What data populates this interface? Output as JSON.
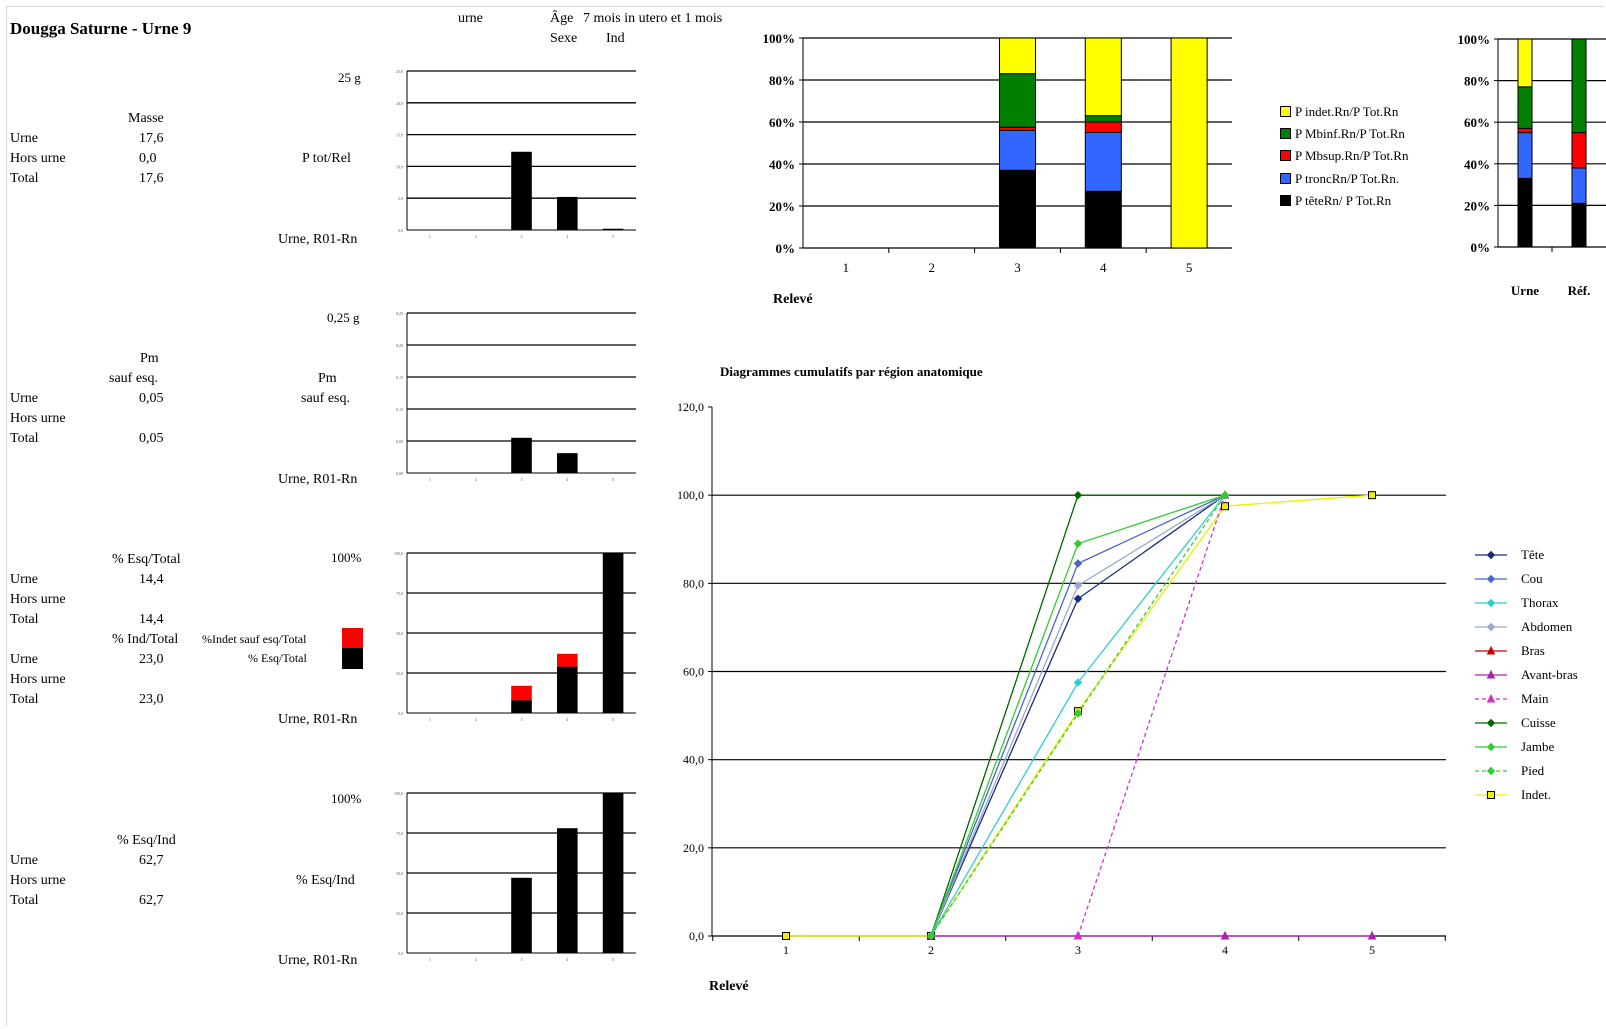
{
  "header": {
    "title": "Dougga Saturne - Urne 9",
    "urne_label": "urne",
    "age_label": "Âge",
    "age_value": "7 mois in utero et 1 mois",
    "sexe_label": "Sexe",
    "sexe_value": "Ind"
  },
  "row_labels": {
    "urne": "Urne",
    "hors_urne": "Hors urne",
    "total": "Total"
  },
  "blocks": {
    "masse": {
      "header": "Masse",
      "urne": "17,6",
      "hors_urne": "0,0",
      "total": "17,6"
    },
    "pm": {
      "header1": "Pm",
      "header2": "sauf esq.",
      "urne": "0,05",
      "hors_urne": "",
      "total": "0,05"
    },
    "esq_total": {
      "header": "% Esq/Total",
      "urne": "14,4",
      "hors_urne": "",
      "total": "14,4"
    },
    "ind_total": {
      "header": "% Ind/Total",
      "urne": "23,0",
      "hors_urne": "",
      "total": "23,0"
    },
    "esq_ind": {
      "header": "% Esq/Ind",
      "urne": "62,7",
      "hors_urne": "",
      "total": "62,7"
    }
  },
  "small_charts_labels": {
    "c1_max": "25 g",
    "c1_side": "P tot/Rel",
    "c1_bottom": "Urne, R01-Rn",
    "c2_max": "0,25 g",
    "c2_side1": "Pm",
    "c2_side2": "sauf esq.",
    "c2_bottom": "Urne, R01-Rn",
    "c3_max": "100%",
    "c3_legend_red": "%Indet sauf esq/Total",
    "c3_legend_black": "% Esq/Total",
    "c3_bottom": "Urne, R01-Rn",
    "c4_max": "100%",
    "c4_side": "% Esq/Ind",
    "c4_bottom": "Urne, R01-Rn"
  },
  "colors": {
    "black": "#000000",
    "red": "#ff0000",
    "yellow": "#ffff00",
    "green": "#007f00",
    "blue": "#3366ff"
  },
  "chart_data": [
    {
      "id": "small1",
      "type": "bar",
      "categories": [
        "1",
        "2",
        "3",
        "4",
        "5"
      ],
      "values": [
        0,
        0,
        12.3,
        5.2,
        0.2
      ],
      "ylim": [
        0,
        25
      ],
      "yticks": [
        "0,0",
        "5,0",
        "10,0",
        "15,0",
        "20,0",
        "25,0"
      ]
    },
    {
      "id": "small2",
      "type": "bar",
      "categories": [
        "1",
        "2",
        "3",
        "4",
        "5"
      ],
      "values": [
        0,
        0,
        0.055,
        0.031,
        0
      ],
      "ylim": [
        0,
        0.25
      ],
      "yticks": [
        "0,00",
        "0,05",
        "0,10",
        "0,15",
        "0,20",
        "0,25"
      ]
    },
    {
      "id": "small3",
      "type": "bar",
      "categories": [
        "1",
        "2",
        "3",
        "4",
        "5"
      ],
      "series": [
        {
          "name": "% Esq/Total",
          "color": "#000000",
          "values": [
            0,
            0,
            8,
            29,
            100
          ]
        },
        {
          "name": "%Indet sauf esq/Total",
          "color": "#ff0000",
          "values": [
            0,
            0,
            9,
            8,
            0
          ]
        }
      ],
      "ylim": [
        0,
        100
      ],
      "yticks": [
        "0,0",
        "25,0",
        "50,0",
        "75,0",
        "100,0"
      ]
    },
    {
      "id": "small4",
      "type": "bar",
      "categories": [
        "1",
        "2",
        "3",
        "4",
        "5"
      ],
      "values": [
        0,
        0,
        47,
        78,
        100
      ],
      "ylim": [
        0,
        100
      ],
      "yticks": [
        "0,0",
        "25,0",
        "50,0",
        "75,0",
        "100,0"
      ]
    },
    {
      "id": "stacked_main",
      "type": "bar",
      "categories": [
        "1",
        "2",
        "3",
        "4",
        "5"
      ],
      "xlabel": "Relevé",
      "ylim": [
        0,
        100
      ],
      "yticks": [
        "0%",
        "20%",
        "40%",
        "60%",
        "80%",
        "100%"
      ],
      "legend_placement": "right",
      "series": [
        {
          "name": "P têteRn/ P Tot.Rn",
          "color": "#000000",
          "values": [
            0,
            0,
            37,
            27,
            0
          ]
        },
        {
          "name": "P troncRn/P Tot.Rn.",
          "color": "#3366ff",
          "values": [
            0,
            0,
            19,
            28,
            0
          ]
        },
        {
          "name": "P Mbsup.Rn/P Tot.Rn",
          "color": "#ff0000",
          "values": [
            0,
            0,
            1.5,
            5,
            0
          ]
        },
        {
          "name": "P Mbinf.Rn/P Tot.Rn",
          "color": "#007f00",
          "values": [
            0,
            0,
            25.5,
            3,
            0
          ]
        },
        {
          "name": "P indet.Rn/P Tot.Rn",
          "color": "#ffff00",
          "values": [
            0,
            0,
            17,
            37,
            100
          ]
        }
      ]
    },
    {
      "id": "stacked_ref",
      "type": "bar",
      "categories": [
        "Urne",
        "Réf."
      ],
      "ylim": [
        0,
        100
      ],
      "yticks": [
        "0%",
        "20%",
        "40%",
        "60%",
        "80%",
        "100%"
      ],
      "series": [
        {
          "name": "P têteRn/ P Tot.Rn",
          "color": "#000000",
          "values": [
            33,
            21
          ]
        },
        {
          "name": "P troncRn/P Tot.Rn.",
          "color": "#3366ff",
          "values": [
            22,
            17
          ]
        },
        {
          "name": "P Mbsup.Rn/P Tot.Rn",
          "color": "#ff0000",
          "values": [
            2,
            17
          ]
        },
        {
          "name": "P Mbinf.Rn/P Tot.Rn",
          "color": "#007f00",
          "values": [
            20,
            45
          ]
        },
        {
          "name": "P indet.Rn/P Tot.Rn",
          "color": "#ffff00",
          "values": [
            23,
            0
          ]
        }
      ]
    },
    {
      "id": "cumulative",
      "type": "line",
      "title": "Diagrammes cumulatifs par région anatomique",
      "xlabel": "Relevé",
      "x": [
        1,
        2,
        3,
        4,
        5
      ],
      "ylim": [
        0,
        120
      ],
      "yticks": [
        "0,0",
        "20,0",
        "40,0",
        "60,0",
        "80,0",
        "100,0",
        "120,0"
      ],
      "legend_placement": "right",
      "series": [
        {
          "name": "Tête",
          "color": "#1a2a80",
          "marker": "diamond",
          "dash": false,
          "values": [
            null,
            0,
            76.5,
            100,
            null
          ]
        },
        {
          "name": "Cou",
          "color": "#4a66cc",
          "marker": "diamond",
          "dash": false,
          "values": [
            null,
            0,
            84.5,
            100,
            null
          ]
        },
        {
          "name": "Thorax",
          "color": "#33cccc",
          "marker": "diamond",
          "dash": false,
          "values": [
            null,
            0,
            57.5,
            100,
            null
          ]
        },
        {
          "name": "Abdomen",
          "color": "#99aacc",
          "marker": "diamond",
          "dash": false,
          "values": [
            null,
            0,
            79.5,
            100,
            null
          ]
        },
        {
          "name": "Bras",
          "color": "#cc0000",
          "marker": "triangle",
          "dash": false,
          "values": [
            null,
            null,
            null,
            null,
            null
          ]
        },
        {
          "name": "Avant-bras",
          "color": "#aa22aa",
          "marker": "triangle",
          "dash": false,
          "values": [
            null,
            0,
            0,
            0,
            0
          ]
        },
        {
          "name": "Main",
          "color": "#cc33cc",
          "marker": "triangle",
          "dash": true,
          "values": [
            null,
            null,
            0,
            100,
            null
          ]
        },
        {
          "name": "Cuisse",
          "color": "#006600",
          "marker": "diamond",
          "dash": false,
          "values": [
            null,
            0,
            100,
            100,
            null
          ]
        },
        {
          "name": "Jambe",
          "color": "#33cc33",
          "marker": "diamond",
          "dash": false,
          "values": [
            null,
            0,
            89,
            100,
            null
          ]
        },
        {
          "name": "Pied",
          "color": "#33cc33",
          "marker": "diamond",
          "dash": true,
          "values": [
            null,
            0,
            50.5,
            100,
            null
          ]
        },
        {
          "name": "Indet.",
          "color": "#eeee00",
          "marker": "square",
          "dash": false,
          "values": [
            0,
            0,
            51,
            97.5,
            100
          ]
        }
      ]
    }
  ]
}
